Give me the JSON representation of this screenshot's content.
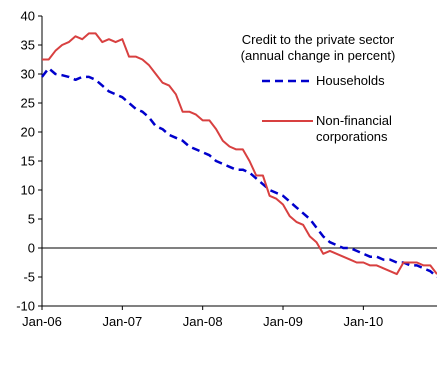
{
  "chart_data": {
    "type": "line",
    "title": "Credit to the private sector",
    "subtitle": "(annual change in percent)",
    "xlabel": "",
    "ylabel": "",
    "ylim": [
      -10,
      40
    ],
    "yticks": [
      40,
      35,
      30,
      25,
      20,
      15,
      10,
      5,
      0,
      -5,
      -10
    ],
    "xlim": [
      "2006-01",
      "2010-12"
    ],
    "xticks": [
      {
        "date": "2006-01",
        "label": "Jan-06"
      },
      {
        "date": "2007-01",
        "label": "Jan-07"
      },
      {
        "date": "2008-01",
        "label": "Jan-08"
      },
      {
        "date": "2009-01",
        "label": "Jan-09"
      },
      {
        "date": "2010-01",
        "label": "Jan-10"
      }
    ],
    "grid": false,
    "legend_position": "top-right",
    "series": [
      {
        "name": "Households",
        "color": "#0000cc",
        "style": "dashed",
        "x": [
          "2006-01",
          "2006-02",
          "2006-03",
          "2006-04",
          "2006-05",
          "2006-06",
          "2006-07",
          "2006-08",
          "2006-09",
          "2006-10",
          "2006-11",
          "2006-12",
          "2007-01",
          "2007-02",
          "2007-03",
          "2007-04",
          "2007-05",
          "2007-06",
          "2007-07",
          "2007-08",
          "2007-09",
          "2007-10",
          "2007-11",
          "2007-12",
          "2008-01",
          "2008-02",
          "2008-03",
          "2008-04",
          "2008-05",
          "2008-06",
          "2008-07",
          "2008-08",
          "2008-09",
          "2008-10",
          "2008-11",
          "2008-12",
          "2009-01",
          "2009-02",
          "2009-03",
          "2009-04",
          "2009-05",
          "2009-06",
          "2009-07",
          "2009-08",
          "2009-09",
          "2009-10",
          "2009-11",
          "2009-12",
          "2010-01",
          "2010-02",
          "2010-03",
          "2010-04",
          "2010-05",
          "2010-06",
          "2010-07",
          "2010-08",
          "2010-09",
          "2010-10",
          "2010-11",
          "2010-12"
        ],
        "values": [
          29.5,
          31.0,
          30.0,
          29.8,
          29.5,
          29.0,
          29.5,
          29.5,
          29.0,
          28.0,
          27.0,
          26.5,
          26.0,
          25.0,
          24.0,
          23.5,
          22.5,
          21.0,
          20.5,
          19.5,
          19.0,
          18.5,
          17.5,
          17.0,
          16.5,
          16.0,
          15.0,
          14.5,
          14.0,
          13.5,
          13.5,
          13.0,
          12.0,
          11.0,
          10.0,
          9.5,
          9.0,
          8.0,
          7.0,
          6.0,
          5.0,
          3.5,
          2.0,
          1.0,
          0.5,
          0.0,
          0.0,
          -0.5,
          -1.0,
          -1.5,
          -1.5,
          -2.0,
          -2.0,
          -2.5,
          -2.5,
          -3.0,
          -3.0,
          -3.5,
          -4.0,
          -5.0
        ]
      },
      {
        "name": "Non-financial corporations",
        "color": "#d84040",
        "style": "solid",
        "x": [
          "2006-01",
          "2006-02",
          "2006-03",
          "2006-04",
          "2006-05",
          "2006-06",
          "2006-07",
          "2006-08",
          "2006-09",
          "2006-10",
          "2006-11",
          "2006-12",
          "2007-01",
          "2007-02",
          "2007-03",
          "2007-04",
          "2007-05",
          "2007-06",
          "2007-07",
          "2007-08",
          "2007-09",
          "2007-10",
          "2007-11",
          "2007-12",
          "2008-01",
          "2008-02",
          "2008-03",
          "2008-04",
          "2008-05",
          "2008-06",
          "2008-07",
          "2008-08",
          "2008-09",
          "2008-10",
          "2008-11",
          "2008-12",
          "2009-01",
          "2009-02",
          "2009-03",
          "2009-04",
          "2009-05",
          "2009-06",
          "2009-07",
          "2009-08",
          "2009-09",
          "2009-10",
          "2009-11",
          "2009-12",
          "2010-01",
          "2010-02",
          "2010-03",
          "2010-04",
          "2010-05",
          "2010-06",
          "2010-07",
          "2010-08",
          "2010-09",
          "2010-10",
          "2010-11",
          "2010-12"
        ],
        "values": [
          32.5,
          32.5,
          34.0,
          35.0,
          35.5,
          36.5,
          36.0,
          37.0,
          37.0,
          35.5,
          36.0,
          35.5,
          36.0,
          33.0,
          33.0,
          32.5,
          31.5,
          30.0,
          28.5,
          28.0,
          26.5,
          23.5,
          23.5,
          23.0,
          22.0,
          22.0,
          20.5,
          18.5,
          17.5,
          17.0,
          17.0,
          15.0,
          12.5,
          12.5,
          9.0,
          8.5,
          7.5,
          5.5,
          4.5,
          4.0,
          2.0,
          1.0,
          -1.0,
          -0.5,
          -1.0,
          -1.5,
          -2.0,
          -2.5,
          -2.5,
          -3.0,
          -3.0,
          -3.5,
          -4.0,
          -4.5,
          -2.5,
          -2.5,
          -2.5,
          -3.0,
          -3.0,
          -4.5
        ]
      }
    ]
  }
}
